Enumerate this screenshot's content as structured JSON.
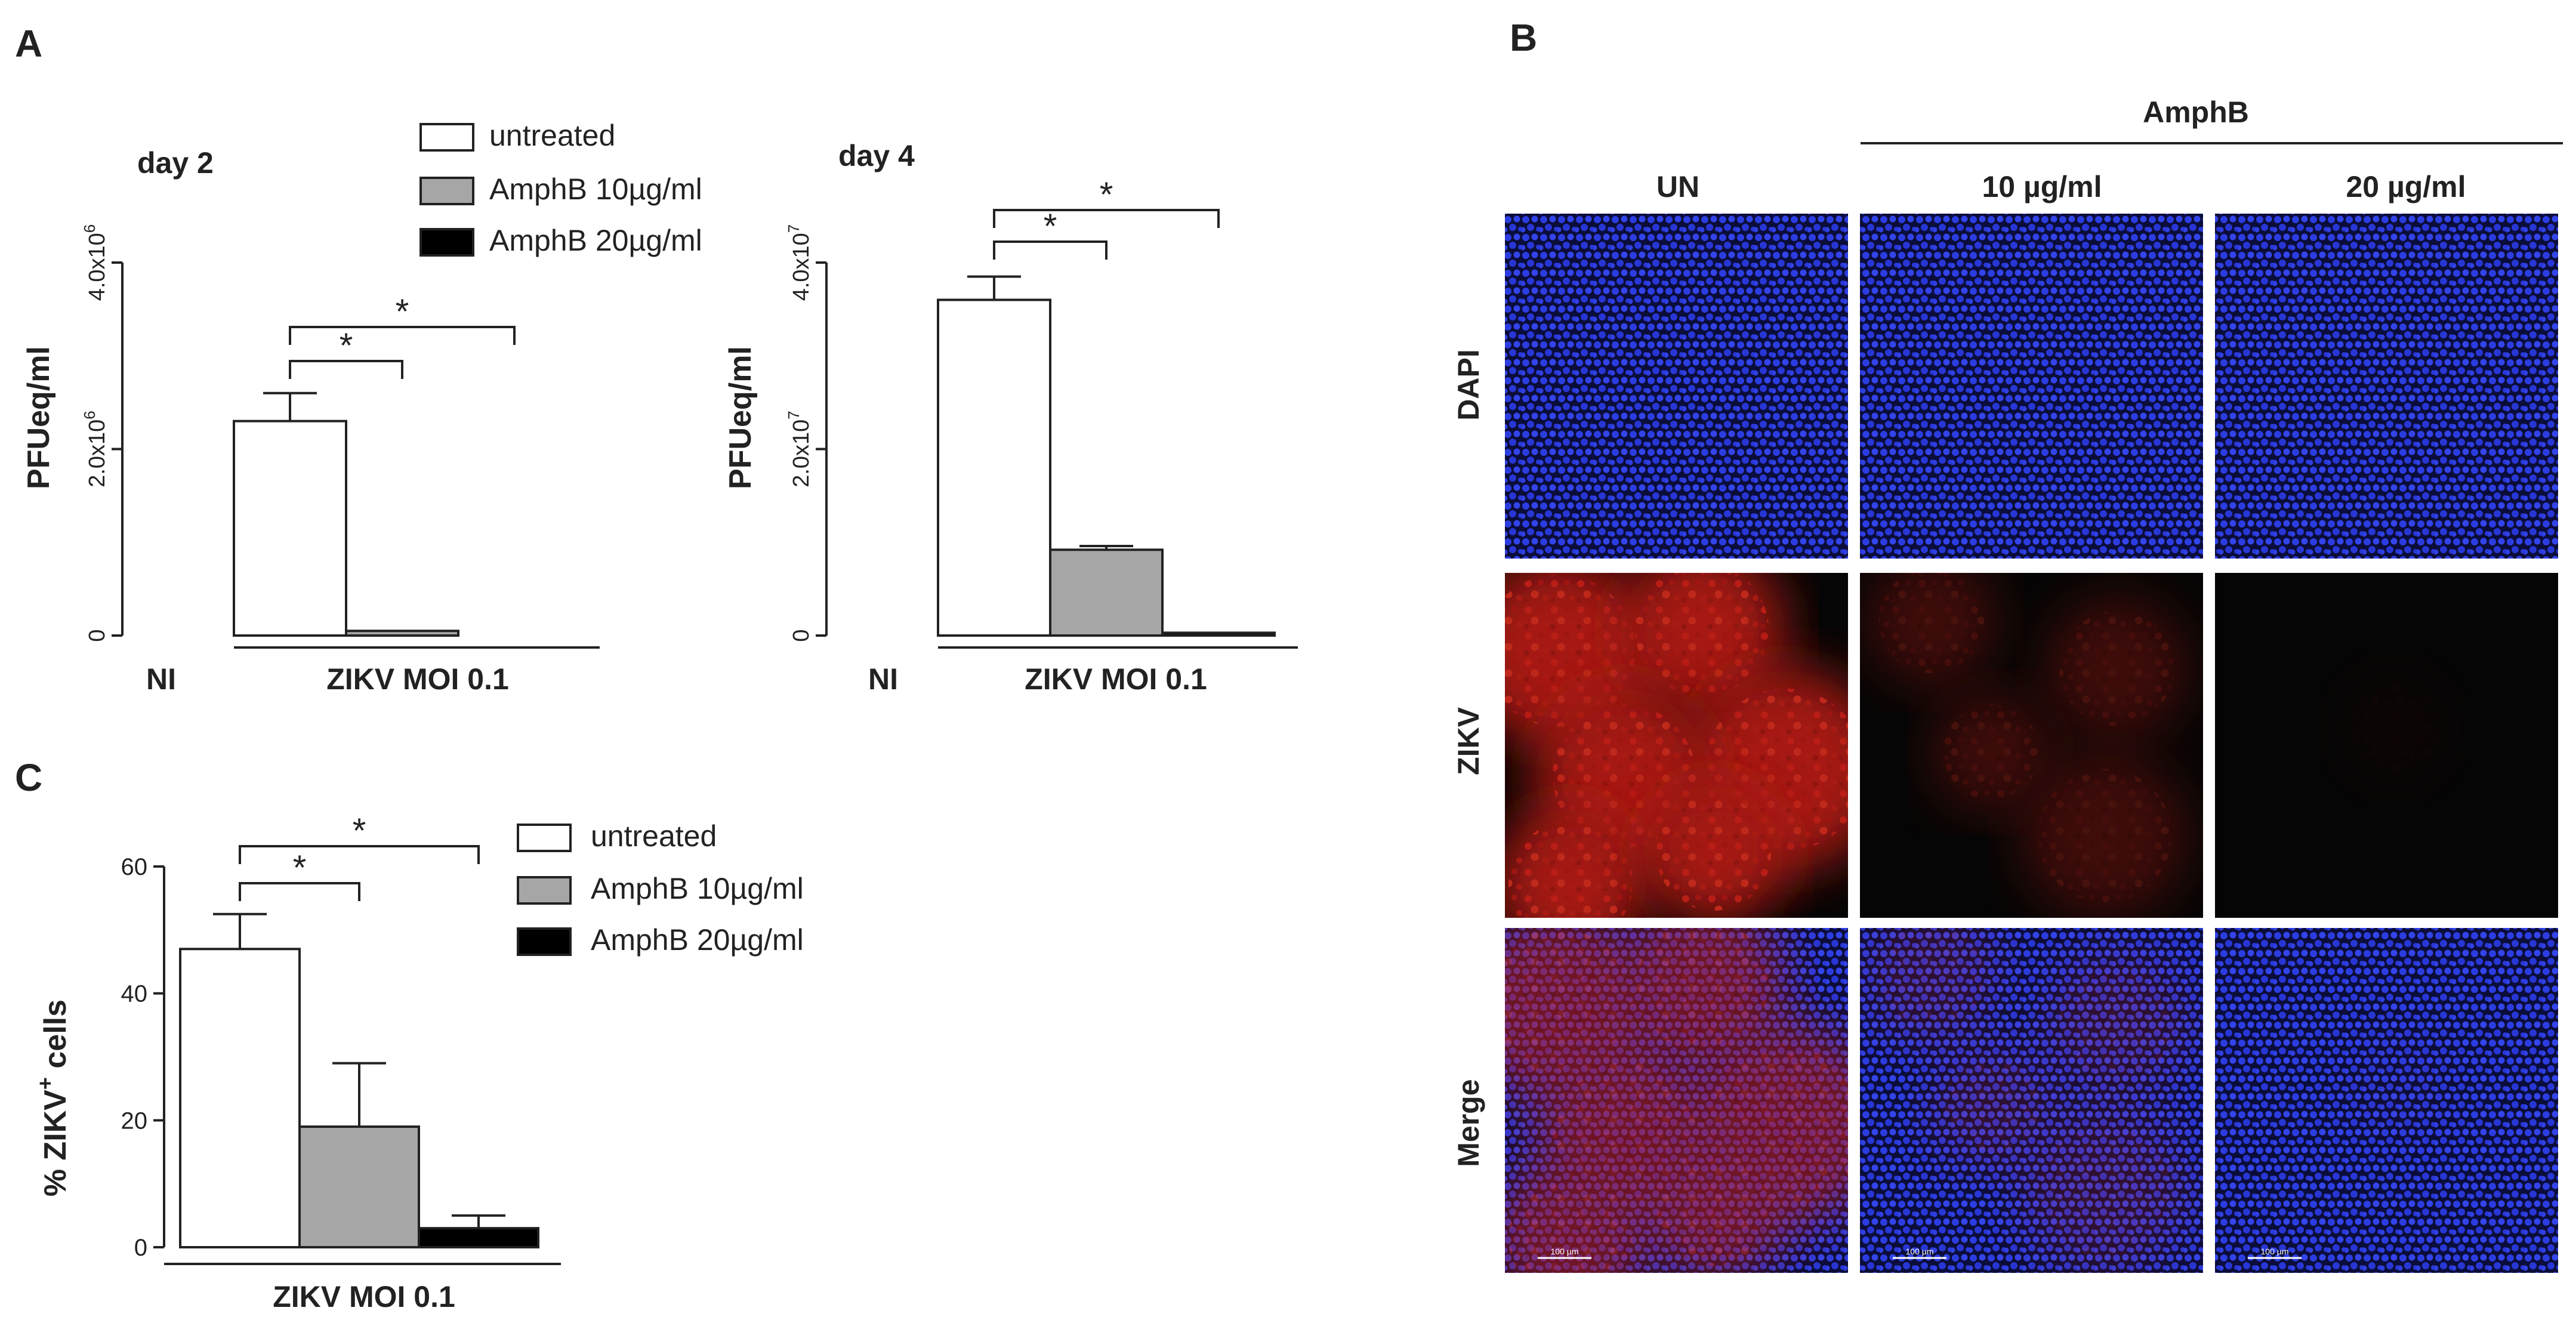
{
  "panel_letters": {
    "a": "A",
    "b": "B",
    "c": "C"
  },
  "chart_data": [
    {
      "type": "bar",
      "panel": "A",
      "title": "day 2",
      "ylabel": "PFUeq/ml",
      "ylim": [
        0,
        4000000
      ],
      "y_ticks": [
        0,
        2000000,
        4000000
      ],
      "y_tick_labels": [
        {
          "base": "0",
          "exp": ""
        },
        {
          "base": "2.0x10",
          "exp": "6"
        },
        {
          "base": "4.0x10",
          "exp": "6"
        }
      ],
      "group_labels": [
        "NI",
        "ZIKV MOI 0.1"
      ],
      "legend": [
        "untreated",
        "AmphB 10µg/ml",
        "AmphB 20µg/ml"
      ],
      "colors": [
        "#ffffff",
        "#a6a6a6",
        "#000000"
      ],
      "values": [
        2300000,
        50000,
        0
      ],
      "errors": [
        300000,
        0,
        0
      ],
      "significance": [
        {
          "from": 0,
          "to": 1,
          "label": "*"
        },
        {
          "from": 0,
          "to": 2,
          "label": "*"
        }
      ]
    },
    {
      "type": "bar",
      "panel": "A",
      "title": "day 4",
      "ylabel": "PFUeq/ml",
      "ylim": [
        0,
        40000000
      ],
      "y_ticks": [
        0,
        20000000,
        40000000
      ],
      "y_tick_labels": [
        {
          "base": "0",
          "exp": ""
        },
        {
          "base": "2.0x10",
          "exp": "7"
        },
        {
          "base": "4.0x10",
          "exp": "7"
        }
      ],
      "group_labels": [
        "NI",
        "ZIKV MOI 0.1"
      ],
      "colors": [
        "#ffffff",
        "#a6a6a6",
        "#000000"
      ],
      "values": [
        36000000,
        9200000,
        300000
      ],
      "errors": [
        2500000,
        400000,
        0
      ],
      "significance": [
        {
          "from": 0,
          "to": 1,
          "label": "*"
        },
        {
          "from": 0,
          "to": 2,
          "label": "*"
        }
      ]
    },
    {
      "type": "bar",
      "panel": "C",
      "ylabel_main": "% ZIKV",
      "ylabel_sup": "+",
      "ylabel_tail": " cells",
      "ylim": [
        0,
        60
      ],
      "y_ticks": [
        0,
        20,
        40,
        60
      ],
      "y_tick_labels": [
        "0",
        "20",
        "40",
        "60"
      ],
      "group_labels": [
        "ZIKV MOI 0.1"
      ],
      "legend": [
        "untreated",
        "AmphB 10µg/ml",
        "AmphB 20µg/ml"
      ],
      "colors": [
        "#ffffff",
        "#a6a6a6",
        "#000000"
      ],
      "values": [
        47,
        19,
        3
      ],
      "errors": [
        5.5,
        10,
        2
      ],
      "significance": [
        {
          "from": 0,
          "to": 1,
          "label": "*"
        },
        {
          "from": 0,
          "to": 2,
          "label": "*"
        }
      ]
    }
  ],
  "micrographs": {
    "treatment_header": "AmphB",
    "columns": [
      "UN",
      "10 µg/ml",
      "20 µg/ml"
    ],
    "rows": [
      "DAPI",
      "ZIKV",
      "Merge"
    ],
    "scale_bars": [
      "100 µm",
      "100 µm",
      "100 µm"
    ],
    "channel_colors": {
      "dapi": "#1f2fd8",
      "zikv": "#c21a12"
    },
    "zikv_signal_level": [
      0.85,
      0.3,
      0.04
    ]
  }
}
